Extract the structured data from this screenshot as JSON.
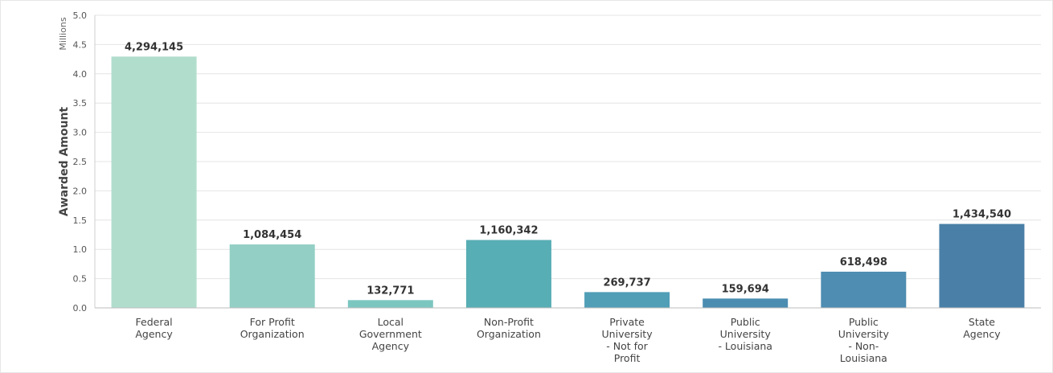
{
  "chart_data": {
    "type": "bar",
    "categories": [
      [
        "Federal",
        "Agency"
      ],
      [
        "For Profit",
        "Organization"
      ],
      [
        "Local",
        "Government",
        "Agency"
      ],
      [
        "Non-Profit",
        "Organization"
      ],
      [
        "Private",
        "University",
        "- Not for",
        "Profit"
      ],
      [
        "Public",
        "University",
        "- Louisiana"
      ],
      [
        "Public",
        "University",
        "- Non-",
        "Louisiana"
      ],
      [
        "State",
        "Agency"
      ]
    ],
    "values": [
      4294145,
      1084454,
      132771,
      1160342,
      269737,
      159694,
      618498,
      1434540
    ],
    "data_labels": [
      "4,294,145",
      "1,084,454",
      "132,771",
      "1,160,342",
      "269,737",
      "159,694",
      "618,498",
      "1,434,540"
    ],
    "colors": [
      "#b1ddcd",
      "#93cfc4",
      "#7cc6c0",
      "#58aeb5",
      "#519eb7",
      "#4b8db1",
      "#4f8db2",
      "#4a80a7"
    ],
    "ylabel": "Awarded Amount",
    "yunit": "Millions",
    "ylim": [
      0,
      5.0
    ],
    "yticks": [
      "0.0",
      "0.5",
      "1.0",
      "1.5",
      "2.0",
      "2.5",
      "3.0",
      "3.5",
      "4.0",
      "4.5",
      "5.0"
    ],
    "grid": true
  }
}
